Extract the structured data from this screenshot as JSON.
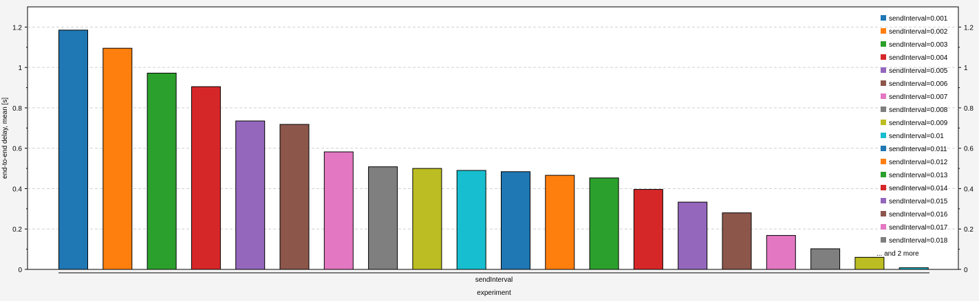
{
  "chart_data": {
    "type": "bar",
    "ylabel": "end-to-end delay, mean [s]",
    "xlabel": "sendInterval",
    "x_group_label": "experiment",
    "ylim": [
      0,
      1.3
    ],
    "yticks": [
      "0",
      "0.2",
      "0.4",
      "0.6",
      "0.8",
      "1",
      "1.2"
    ],
    "grid": true,
    "legend_position": "top-right",
    "legend_more": "... and 2 more",
    "colors": [
      "#1f77b4",
      "#ff7f0e",
      "#2ca02c",
      "#d62728",
      "#9467bd",
      "#8c564b",
      "#e377c2",
      "#7f7f7f",
      "#bcbd22",
      "#17becf"
    ],
    "series": [
      {
        "name": "sendInterval=0.001",
        "value": 1.185
      },
      {
        "name": "sendInterval=0.002",
        "value": 1.095
      },
      {
        "name": "sendInterval=0.003",
        "value": 0.972
      },
      {
        "name": "sendInterval=0.004",
        "value": 0.905
      },
      {
        "name": "sendInterval=0.005",
        "value": 0.735
      },
      {
        "name": "sendInterval=0.006",
        "value": 0.718
      },
      {
        "name": "sendInterval=0.007",
        "value": 0.582
      },
      {
        "name": "sendInterval=0.008",
        "value": 0.508
      },
      {
        "name": "sendInterval=0.009",
        "value": 0.5
      },
      {
        "name": "sendInterval=0.01",
        "value": 0.49
      },
      {
        "name": "sendInterval=0.011",
        "value": 0.484
      },
      {
        "name": "sendInterval=0.012",
        "value": 0.466
      },
      {
        "name": "sendInterval=0.013",
        "value": 0.453
      },
      {
        "name": "sendInterval=0.014",
        "value": 0.396
      },
      {
        "name": "sendInterval=0.015",
        "value": 0.333
      },
      {
        "name": "sendInterval=0.016",
        "value": 0.28
      },
      {
        "name": "sendInterval=0.017",
        "value": 0.168
      },
      {
        "name": "sendInterval=0.018",
        "value": 0.102
      },
      {
        "name": "",
        "value": 0.06
      },
      {
        "name": "",
        "value": 0.008
      }
    ]
  }
}
